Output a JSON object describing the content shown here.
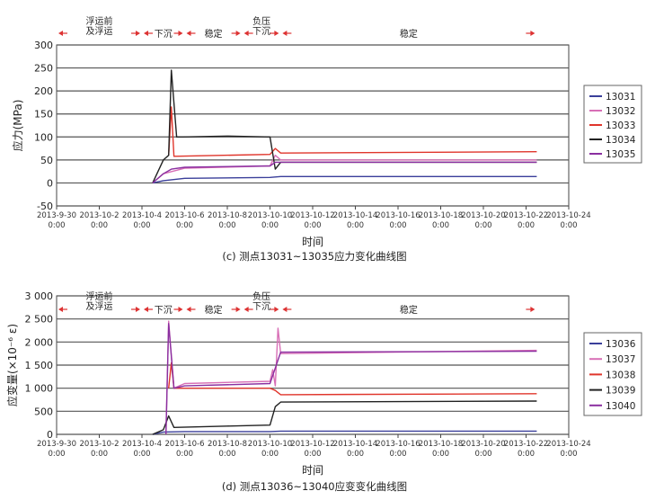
{
  "chart_data": [
    {
      "type": "line",
      "caption": "(c) 测点13031~13035应力变化曲线图",
      "ylabel": "应力(MPa)",
      "xlabel": "时间",
      "ylim": [
        -50,
        300
      ],
      "yticks": [
        300,
        250,
        200,
        150,
        100,
        50,
        0,
        -50
      ],
      "ytick_labels": [
        "300",
        "250",
        "200",
        "150",
        "100",
        "50",
        "0",
        "-50"
      ],
      "xlim": [
        "2013-9-30",
        "2013-10-24"
      ],
      "xticks": [
        "2013-9-30",
        "2013-10-2",
        "2013-10-4",
        "2013-10-6",
        "2013-10-8",
        "2013-10-10",
        "2013-10-12",
        "2013-10-14",
        "2013-10-16",
        "2013-10-18",
        "2013-10-20",
        "2013-10-22",
        "2013-10-24"
      ],
      "xtick_time": "0:00",
      "grid": "horizontal",
      "legend_position": "right",
      "stages": [
        {
          "label": "浮运前\n及浮运",
          "from": "2013-9-30",
          "to": "2013-10-4"
        },
        {
          "label": "下沉",
          "from": "2013-10-4",
          "to": "2013-10-6"
        },
        {
          "label": "稳定",
          "from": "2013-10-6",
          "to": "2013-10-8.7"
        },
        {
          "label": "负压\n下沉",
          "from": "2013-10-8.7",
          "to": "2013-10-10.5"
        },
        {
          "label": "稳定",
          "from": "2013-10-10.5",
          "to": "2013-10-22.5"
        }
      ],
      "series": [
        {
          "name": "13031",
          "color": "#3a3f9a",
          "x": [
            "2013-10-04 12:00",
            "2013-10-05 00:00",
            "2013-10-06 00:00",
            "2013-10-10 00:00",
            "2013-10-10 12:00",
            "2013-10-22 12:00"
          ],
          "y": [
            0,
            5,
            10,
            12,
            14,
            14
          ]
        },
        {
          "name": "13032",
          "color": "#d86fb6",
          "x": [
            "2013-10-04 12:00",
            "2013-10-05 00:00",
            "2013-10-06 00:00",
            "2013-10-10 00:00",
            "2013-10-10 06:00",
            "2013-10-10 12:00",
            "2013-10-22 12:00"
          ],
          "y": [
            0,
            20,
            32,
            37,
            60,
            50,
            50
          ]
        },
        {
          "name": "13033",
          "color": "#e0352b",
          "x": [
            "2013-10-05 06:00",
            "2013-10-05 09:00",
            "2013-10-05 12:00",
            "2013-10-10 00:00",
            "2013-10-10 06:00",
            "2013-10-10 12:00",
            "2013-10-22 12:00"
          ],
          "y": [
            60,
            165,
            58,
            62,
            75,
            65,
            68
          ]
        },
        {
          "name": "13034",
          "color": "#222222",
          "x": [
            "2013-10-04 12:00",
            "2013-10-05 00:00",
            "2013-10-05 06:00",
            "2013-10-05 09:00",
            "2013-10-05 15:00",
            "2013-10-05 18:00",
            "2013-10-05 22:00",
            "2013-10-08 00:00",
            "2013-10-10 00:00",
            "2013-10-10 06:00",
            "2013-10-10 12:00",
            "2013-10-22 12:00"
          ],
          "y": [
            0,
            50,
            60,
            245,
            100,
            100,
            100,
            102,
            100,
            30,
            45,
            45
          ]
        },
        {
          "name": "13035",
          "color": "#8a2fa0",
          "x": [
            "2013-10-04 12:00",
            "2013-10-05 00:00",
            "2013-10-05 09:00",
            "2013-10-06 00:00",
            "2013-10-10 00:00",
            "2013-10-10 06:00",
            "2013-10-10 12:00",
            "2013-10-22 12:00"
          ],
          "y": [
            0,
            20,
            30,
            34,
            37,
            45,
            45,
            45
          ]
        }
      ]
    },
    {
      "type": "line",
      "caption": "(d) 测点13036~13040应变变化曲线图",
      "ylabel": "应变量(×10⁻⁶ ε)",
      "xlabel": "时间",
      "ylim": [
        0,
        3000
      ],
      "yticks": [
        3000,
        2500,
        2000,
        1500,
        1000,
        500,
        0
      ],
      "ytick_labels": [
        "3 000",
        "2 500",
        "2 000",
        "1 500",
        "1 000",
        "500",
        "0"
      ],
      "xlim": [
        "2013-9-30",
        "2013-10-24"
      ],
      "xticks": [
        "2013-9-30",
        "2013-10-2",
        "2013-10-4",
        "2013-10-6",
        "2013-10-8",
        "2013-10-10",
        "2013-10-12",
        "2013-10-14",
        "2013-10-16",
        "2013-10-18",
        "2013-10-20",
        "2013-10-22",
        "2013-10-24"
      ],
      "xtick_time": "0:00",
      "grid": "horizontal",
      "legend_position": "right",
      "stages": [
        {
          "label": "浮运前\n及浮运",
          "from": "2013-9-30",
          "to": "2013-10-4"
        },
        {
          "label": "下沉",
          "from": "2013-10-4",
          "to": "2013-10-6"
        },
        {
          "label": "稳定",
          "from": "2013-10-6",
          "to": "2013-10-8.7"
        },
        {
          "label": "负压\n下沉",
          "from": "2013-10-8.7",
          "to": "2013-10-10.5"
        },
        {
          "label": "稳定",
          "from": "2013-10-10.5",
          "to": "2013-10-22.5"
        }
      ],
      "series": [
        {
          "name": "13036",
          "color": "#3a3f9a",
          "x": [
            "2013-10-04 12:00",
            "2013-10-05 00:00",
            "2013-10-06 00:00",
            "2013-10-10 00:00",
            "2013-10-10 12:00",
            "2013-10-22 12:00"
          ],
          "y": [
            0,
            50,
            60,
            60,
            70,
            70
          ]
        },
        {
          "name": "13037",
          "color": "#d86fb6",
          "x": [
            "2013-10-05 03:00",
            "2013-10-05 06:00",
            "2013-10-05 12:00",
            "2013-10-06 00:00",
            "2013-10-10 00:00",
            "2013-10-10 03:00",
            "2013-10-10 06:00",
            "2013-10-10 09:00",
            "2013-10-10 12:00",
            "2013-10-22 12:00"
          ],
          "y": [
            0,
            2450,
            1000,
            1100,
            1150,
            1400,
            1050,
            2300,
            1750,
            1820
          ]
        },
        {
          "name": "13038",
          "color": "#e0352b",
          "x": [
            "2013-10-05 06:00",
            "2013-10-05 09:00",
            "2013-10-05 12:00",
            "2013-10-10 00:00",
            "2013-10-10 06:00",
            "2013-10-10 12:00",
            "2013-10-22 12:00"
          ],
          "y": [
            1000,
            1550,
            1000,
            1000,
            950,
            860,
            880
          ]
        },
        {
          "name": "13039",
          "color": "#222222",
          "x": [
            "2013-10-04 12:00",
            "2013-10-05 00:00",
            "2013-10-05 06:00",
            "2013-10-05 12:00",
            "2013-10-08 00:00",
            "2013-10-10 00:00",
            "2013-10-10 06:00",
            "2013-10-10 12:00",
            "2013-10-22 12:00"
          ],
          "y": [
            0,
            100,
            400,
            150,
            180,
            200,
            600,
            700,
            720
          ]
        },
        {
          "name": "13040",
          "color": "#8a2fa0",
          "x": [
            "2013-10-05 03:00",
            "2013-10-05 06:00",
            "2013-10-05 12:00",
            "2013-10-06 00:00",
            "2013-10-10 00:00",
            "2013-10-10 12:00",
            "2013-10-22 12:00"
          ],
          "y": [
            0,
            2400,
            1000,
            1050,
            1100,
            1780,
            1800
          ]
        }
      ]
    }
  ]
}
